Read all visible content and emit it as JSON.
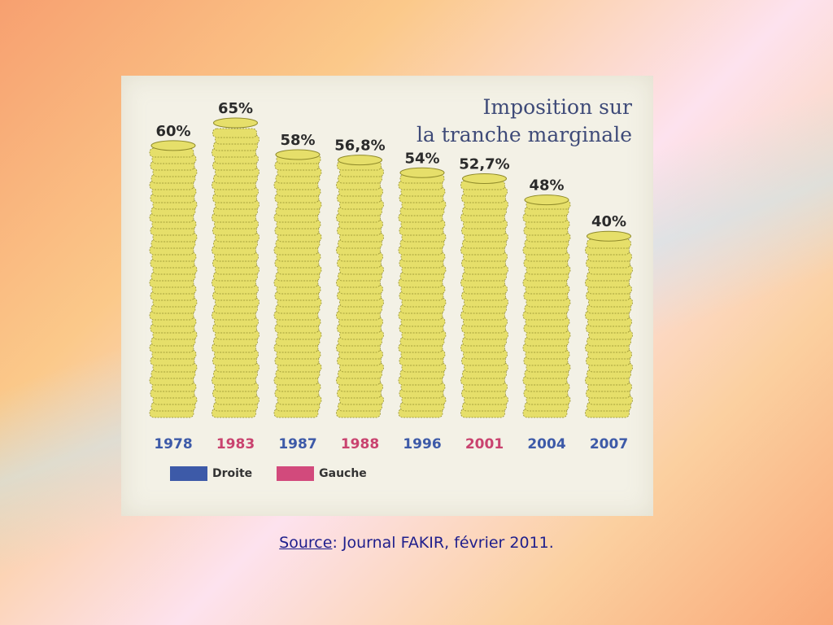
{
  "title_lines": [
    "Imposition sur",
    "la tranche marginale"
  ],
  "legend": [
    {
      "label": "Droite",
      "color": "#3d5aa8"
    },
    {
      "label": "Gauche",
      "color": "#d24a7c"
    }
  ],
  "source": {
    "label": "Source",
    "text": ": Journal FAKIR, février 2011."
  },
  "colors": {
    "coin": "#e6df6a",
    "coin_edge": "#8f8a2a",
    "droite_text": "#3d5aa8",
    "gauche_text": "#c9436f"
  },
  "chart_data": {
    "type": "bar",
    "title": "Imposition sur la tranche marginale",
    "categories": [
      "1978",
      "1983",
      "1987",
      "1988",
      "1996",
      "2001",
      "2004",
      "2007"
    ],
    "values": [
      60,
      65,
      58,
      56.8,
      54,
      52.7,
      48,
      40
    ],
    "value_labels": [
      "60%",
      "65%",
      "58%",
      "56,8%",
      "54%",
      "52,7%",
      "48%",
      "40%"
    ],
    "groups": [
      "Droite",
      "Gauche",
      "Droite",
      "Gauche",
      "Droite",
      "Gauche",
      "Droite",
      "Droite"
    ],
    "unit": "%",
    "ylim": [
      0,
      65
    ],
    "grid": false,
    "legend_position": "bottom-left"
  }
}
